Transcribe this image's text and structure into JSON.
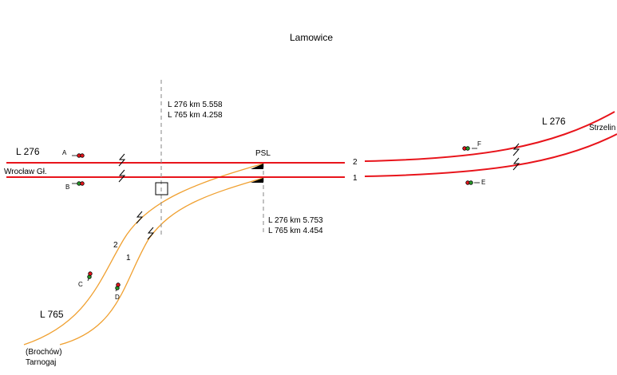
{
  "title": "Lamowice",
  "kilometrage": [
    {
      "line1": "L 276 km 5.558",
      "line2": "L 765 km 4.258"
    },
    {
      "line1": "L 276 km 5.753",
      "line2": "L 765 km 4.454"
    }
  ],
  "line_labels": {
    "west": "L 276",
    "west_station": "Wrocław Gł.",
    "east": "L 276",
    "east_station": "Strzelin",
    "south": "L 765",
    "south_station_1": "(Brochów)",
    "south_station_2": "Tarnogaj"
  },
  "siding": "PSL",
  "tracks": {
    "main_2": "2",
    "main_1": "1",
    "branch_2": "2",
    "branch_1": "1"
  },
  "signals": [
    "A",
    "B",
    "C",
    "D",
    "E",
    "F"
  ]
}
